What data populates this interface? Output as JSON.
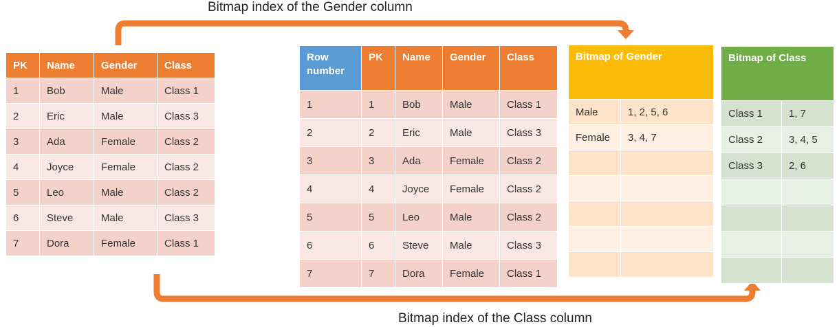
{
  "captions": {
    "gender": "Bitmap index of the Gender column",
    "class": "Bitmap index of the Class column"
  },
  "left_table": {
    "headers": [
      "PK",
      "Name",
      "Gender",
      "Class"
    ],
    "rows": [
      [
        "1",
        "Bob",
        "Male",
        "Class 1"
      ],
      [
        "2",
        "Eric",
        "Male",
        "Class 3"
      ],
      [
        "3",
        "Ada",
        "Female",
        "Class 2"
      ],
      [
        "4",
        "Joyce",
        "Female",
        "Class 2"
      ],
      [
        "5",
        "Leo",
        "Male",
        "Class 2"
      ],
      [
        "6",
        "Steve",
        "Male",
        "Class 3"
      ],
      [
        "7",
        "Dora",
        "Female",
        "Class 1"
      ]
    ]
  },
  "mid_table": {
    "headers": [
      "Row number",
      "PK",
      "Name",
      "Gender",
      "Class"
    ],
    "rows": [
      [
        "1",
        "1",
        "Bob",
        "Male",
        "Class 1"
      ],
      [
        "2",
        "2",
        "Eric",
        "Male",
        "Class 3"
      ],
      [
        "3",
        "3",
        "Ada",
        "Female",
        "Class 2"
      ],
      [
        "4",
        "4",
        "Joyce",
        "Female",
        "Class 2"
      ],
      [
        "5",
        "5",
        "Leo",
        "Male",
        "Class 2"
      ],
      [
        "6",
        "6",
        "Steve",
        "Male",
        "Class 3"
      ],
      [
        "7",
        "7",
        "Dora",
        "Female",
        "Class 1"
      ]
    ]
  },
  "gender_bitmap": {
    "title": "Bitmap of Gender",
    "rows": [
      [
        "Male",
        "1, 2, 5, 6"
      ],
      [
        "Female",
        "3, 4, 7"
      ],
      [
        "",
        ""
      ],
      [
        "",
        ""
      ],
      [
        "",
        ""
      ],
      [
        "",
        ""
      ],
      [
        "",
        ""
      ]
    ]
  },
  "class_bitmap": {
    "title": "Bitmap of Class",
    "rows": [
      [
        "Class 1",
        "1, 7"
      ],
      [
        "Class 2",
        "3, 4, 5"
      ],
      [
        "Class 3",
        "2, 6"
      ],
      [
        "",
        ""
      ],
      [
        "",
        ""
      ],
      [
        "",
        ""
      ],
      [
        "",
        ""
      ]
    ]
  },
  "colors": {
    "arrow": "#ed7d31",
    "orange_header": "#ed7d31",
    "row_number_header": "#5b9bd5",
    "gender_header": "#fbbc07",
    "class_header": "#70ad47"
  }
}
